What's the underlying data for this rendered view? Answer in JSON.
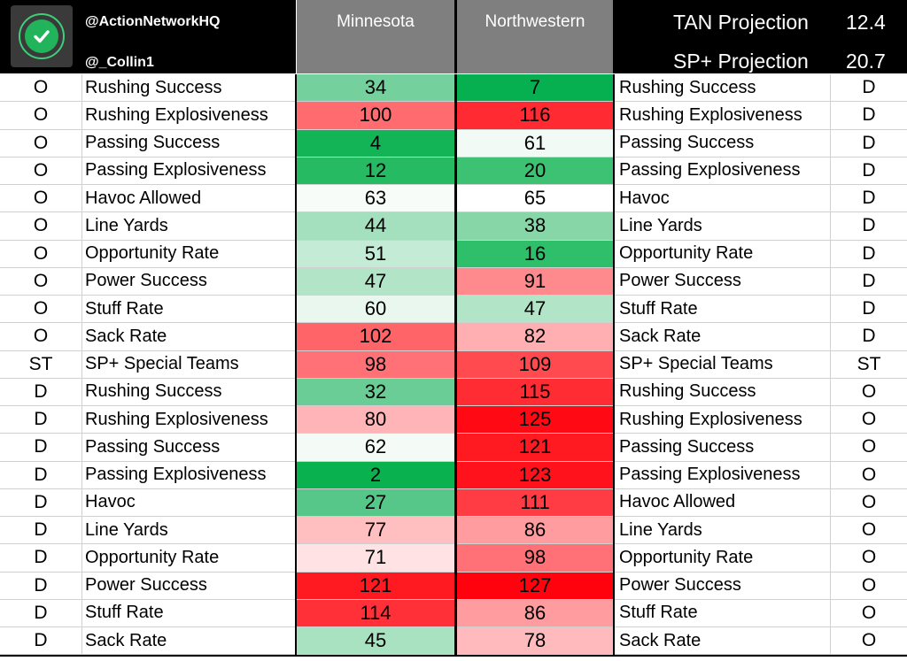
{
  "header": {
    "handle1": "@ActionNetworkHQ",
    "handle2": "@_Collin1",
    "team1": "Minnesota",
    "team2": "Northwestern",
    "proj1_label": "TAN Projection",
    "proj1_value": "12.4",
    "proj2_label": "SP+ Projection",
    "proj2_value": "20.7",
    "logo_icon": "checkmark-icon"
  },
  "rows": [
    {
      "side": "O",
      "stat": "Rushing Success",
      "minn": "34",
      "minn_color": "#74d19e",
      "nw": "7",
      "nw_color": "#06b050",
      "opp_stat": "Rushing Success",
      "opp_side": "D"
    },
    {
      "side": "O",
      "stat": "Rushing Explosiveness",
      "minn": "100",
      "minn_color": "#ff6b6f",
      "nw": "116",
      "nw_color": "#ff2a32",
      "opp_stat": "Rushing Explosiveness",
      "opp_side": "D"
    },
    {
      "side": "O",
      "stat": "Passing Success",
      "minn": "4",
      "minn_color": "#12b455",
      "nw": "61",
      "nw_color": "#f2faf5",
      "opp_stat": "Passing Success",
      "opp_side": "D"
    },
    {
      "side": "O",
      "stat": "Passing Explosiveness",
      "minn": "12",
      "minn_color": "#26ba63",
      "nw": "20",
      "nw_color": "#3dc274",
      "opp_stat": "Passing Explosiveness",
      "opp_side": "D"
    },
    {
      "side": "O",
      "stat": "Havoc Allowed",
      "minn": "63",
      "minn_color": "#f8fcf9",
      "nw": "65",
      "nw_color": "#ffffff",
      "opp_stat": "Havoc",
      "opp_side": "D"
    },
    {
      "side": "O",
      "stat": "Line Yards",
      "minn": "44",
      "minn_color": "#a4e0bd",
      "nw": "38",
      "nw_color": "#86d6a8",
      "opp_stat": "Line Yards",
      "opp_side": "D"
    },
    {
      "side": "O",
      "stat": "Opportunity Rate",
      "minn": "51",
      "minn_color": "#c4ebd5",
      "nw": "16",
      "nw_color": "#2fbe69",
      "opp_stat": "Opportunity Rate",
      "opp_side": "D"
    },
    {
      "side": "O",
      "stat": "Power Success",
      "minn": "47",
      "minn_color": "#b2e5c8",
      "nw": "91",
      "nw_color": "#ff8a8d",
      "opp_stat": "Power Success",
      "opp_side": "D"
    },
    {
      "side": "O",
      "stat": "Stuff Rate",
      "minn": "60",
      "minn_color": "#eaf7ef",
      "nw": "47",
      "nw_color": "#b2e5c8",
      "opp_stat": "Stuff Rate",
      "opp_side": "D"
    },
    {
      "side": "O",
      "stat": "Sack Rate",
      "minn": "102",
      "minn_color": "#ff6469",
      "nw": "82",
      "nw_color": "#ffafb2",
      "opp_stat": "Sack Rate",
      "opp_side": "D"
    },
    {
      "side": "ST",
      "stat": "SP+ Special Teams",
      "minn": "98",
      "minn_color": "#ff7176",
      "nw": "109",
      "nw_color": "#ff4a50",
      "opp_stat": "SP+ Special Teams",
      "opp_side": "ST"
    },
    {
      "side": "D",
      "stat": "Rushing Success",
      "minn": "32",
      "minn_color": "#6acd95",
      "nw": "115",
      "nw_color": "#ff2c33",
      "opp_stat": "Rushing Success",
      "opp_side": "O"
    },
    {
      "side": "D",
      "stat": "Rushing Explosiveness",
      "minn": "80",
      "minn_color": "#ffb5b7",
      "nw": "125",
      "nw_color": "#ff0a14",
      "opp_stat": "Rushing Explosiveness",
      "opp_side": "O"
    },
    {
      "side": "D",
      "stat": "Passing Success",
      "minn": "62",
      "minn_color": "#f4fbf7",
      "nw": "121",
      "nw_color": "#ff1a22",
      "opp_stat": "Passing Success",
      "opp_side": "O"
    },
    {
      "side": "D",
      "stat": "Passing Explosiveness",
      "minn": "2",
      "minn_color": "#0ab24f",
      "nw": "123",
      "nw_color": "#ff121b",
      "opp_stat": "Passing Explosiveness",
      "opp_side": "O"
    },
    {
      "side": "D",
      "stat": "Havoc",
      "minn": "27",
      "minn_color": "#56c788",
      "nw": "111",
      "nw_color": "#ff3c43",
      "opp_stat": "Havoc Allowed",
      "opp_side": "O"
    },
    {
      "side": "D",
      "stat": "Line Yards",
      "minn": "77",
      "minn_color": "#ffbfc1",
      "nw": "86",
      "nw_color": "#ff9c9f",
      "opp_stat": "Line Yards",
      "opp_side": "O"
    },
    {
      "side": "D",
      "stat": "Opportunity Rate",
      "minn": "71",
      "minn_color": "#ffe2e3",
      "nw": "98",
      "nw_color": "#ff7176",
      "opp_stat": "Opportunity Rate",
      "opp_side": "O"
    },
    {
      "side": "D",
      "stat": "Power Success",
      "minn": "121",
      "minn_color": "#ff1a22",
      "nw": "127",
      "nw_color": "#ff020d",
      "opp_stat": "Power Success",
      "opp_side": "O"
    },
    {
      "side": "D",
      "stat": "Stuff Rate",
      "minn": "114",
      "minn_color": "#ff3037",
      "nw": "86",
      "nw_color": "#ff9c9f",
      "opp_stat": "Stuff Rate",
      "opp_side": "O"
    },
    {
      "side": "D",
      "stat": "Sack Rate",
      "minn": "45",
      "minn_color": "#a9e2c1",
      "nw": "78",
      "nw_color": "#ffbabd",
      "opp_stat": "Sack Rate",
      "opp_side": "O"
    }
  ]
}
